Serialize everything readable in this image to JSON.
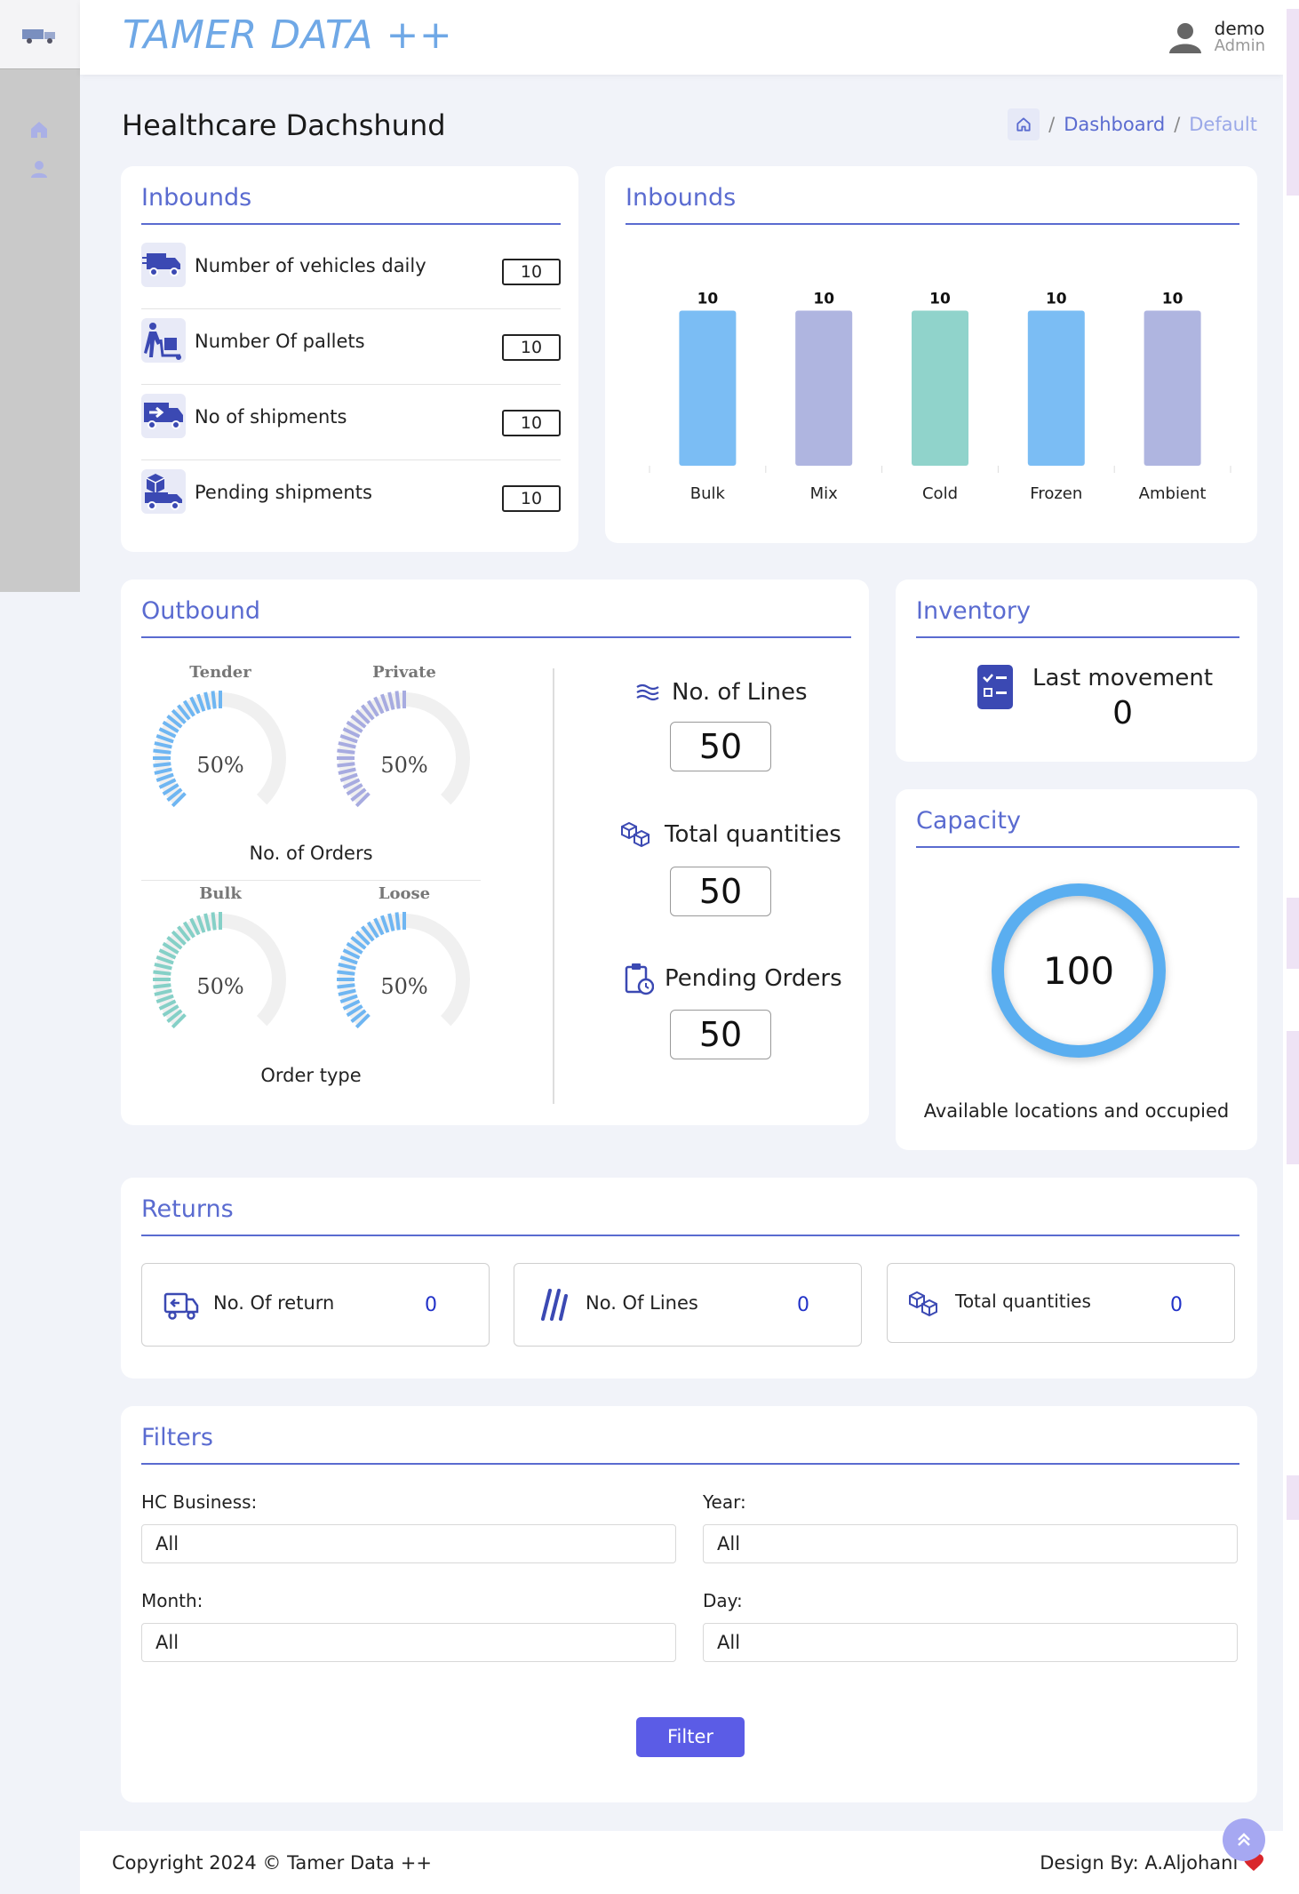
{
  "app": {
    "brand": "TAMER DATA ++"
  },
  "user": {
    "name": "demo",
    "role": "Admin"
  },
  "page": {
    "title": "Healthcare Dachshund"
  },
  "breadcrumb": {
    "items": [
      "Dashboard",
      "Default"
    ],
    "separator": "/"
  },
  "inbounds_list": {
    "title": "Inbounds",
    "rows": [
      {
        "label": "Number of vehicles daily",
        "value": "10",
        "icon": "truck-icon"
      },
      {
        "label": "Number Of pallets",
        "value": "10",
        "icon": "hand-truck-icon"
      },
      {
        "label": "No of shipments",
        "value": "10",
        "icon": "shipping-truck-icon"
      },
      {
        "label": "Pending shipments",
        "value": "10",
        "icon": "box-truck-icon"
      }
    ]
  },
  "inbounds_chart": {
    "title": "Inbounds"
  },
  "chart_data": {
    "type": "bar",
    "categories": [
      "Bulk",
      "Mix",
      "Cold",
      "Frozen",
      "Ambient"
    ],
    "values": [
      10,
      10,
      10,
      10,
      10
    ],
    "colors": [
      "#7bbdf4",
      "#afb5e0",
      "#90d3cb",
      "#7bbdf4",
      "#afb5e0"
    ],
    "title": "Inbounds",
    "ylim": [
      0,
      11
    ],
    "data_labels": true,
    "grid": false
  },
  "outbound": {
    "title": "Outbound",
    "gauges": [
      {
        "label": "Tender",
        "pct": "50%",
        "value": 50,
        "color": "#6fb6f2"
      },
      {
        "label": "Private",
        "pct": "50%",
        "value": 50,
        "color": "#a7abe0"
      },
      {
        "label": "Bulk",
        "pct": "50%",
        "value": 50,
        "color": "#85d0c7"
      },
      {
        "label": "Loose",
        "pct": "50%",
        "value": 50,
        "color": "#6fb6f2"
      }
    ],
    "orders_caption": "No. of Orders",
    "type_caption": "Order type",
    "metrics": [
      {
        "label": "No. of Lines",
        "value": "50",
        "icon": "lines-icon"
      },
      {
        "label": "Total quantities",
        "value": "50",
        "icon": "boxes-icon"
      },
      {
        "label": "Pending Orders",
        "value": "50",
        "icon": "clipboard-clock-icon"
      }
    ]
  },
  "inventory": {
    "title": "Inventory",
    "label": "Last movement",
    "value": "0"
  },
  "capacity": {
    "title": "Capacity",
    "value": "100",
    "caption": "Available locations and occupied"
  },
  "returns": {
    "title": "Returns",
    "boxes": [
      {
        "label": "No. Of return",
        "value": "0",
        "icon": "return-truck-icon"
      },
      {
        "label": "No. Of Lines",
        "value": "0",
        "icon": "slashes-icon"
      },
      {
        "label": "Total quantities",
        "value": "0",
        "icon": "boxes-icon"
      }
    ]
  },
  "filters": {
    "title": "Filters",
    "fields": [
      {
        "label": "HC Business:",
        "value": "All"
      },
      {
        "label": "Year:",
        "value": "All"
      },
      {
        "label": "Month:",
        "value": "All"
      },
      {
        "label": "Day:",
        "value": "All"
      }
    ],
    "button": "Filter"
  },
  "footer": {
    "copyright": "Copyright 2024 © Tamer Data ++",
    "design": "Design By: A.Aljohani"
  },
  "colors": {
    "accent": "#5a6bd0",
    "brand": "#6fa8e6",
    "button": "#5b5ce6",
    "return_value": "#2232c8"
  }
}
